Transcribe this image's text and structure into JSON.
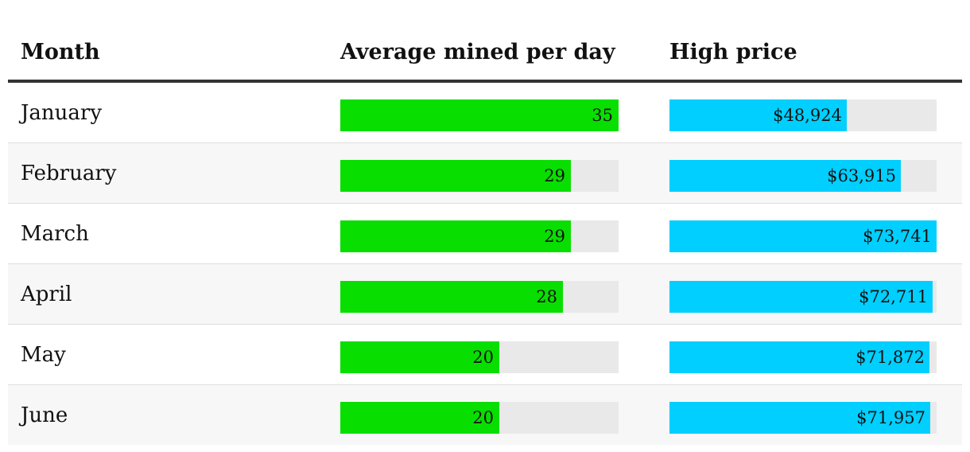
{
  "table": {
    "headers": {
      "month": "Month",
      "mined": "Average mined per day",
      "price": "High price"
    }
  },
  "colors": {
    "mined_bar": "#08df00",
    "price_bar": "#00cfff",
    "track": "#e9e9e9",
    "header_rule": "#333333"
  },
  "chart_data": {
    "type": "table",
    "columns": [
      "Month",
      "Average mined per day",
      "High price"
    ],
    "rows": [
      {
        "month": "January",
        "mined": 35,
        "mined_label": "35",
        "price": 48924,
        "price_label": "$48,924"
      },
      {
        "month": "February",
        "mined": 29,
        "mined_label": "29",
        "price": 63915,
        "price_label": "$63,915"
      },
      {
        "month": "March",
        "mined": 29,
        "mined_label": "29",
        "price": 73741,
        "price_label": "$73,741"
      },
      {
        "month": "April",
        "mined": 28,
        "mined_label": "28",
        "price": 72711,
        "price_label": "$72,711"
      },
      {
        "month": "May",
        "mined": 20,
        "mined_label": "20",
        "price": 71872,
        "price_label": "$71,872"
      },
      {
        "month": "June",
        "mined": 20,
        "mined_label": "20",
        "price": 71957,
        "price_label": "$71,957"
      }
    ],
    "mined_max": 35,
    "price_max": 73741
  }
}
